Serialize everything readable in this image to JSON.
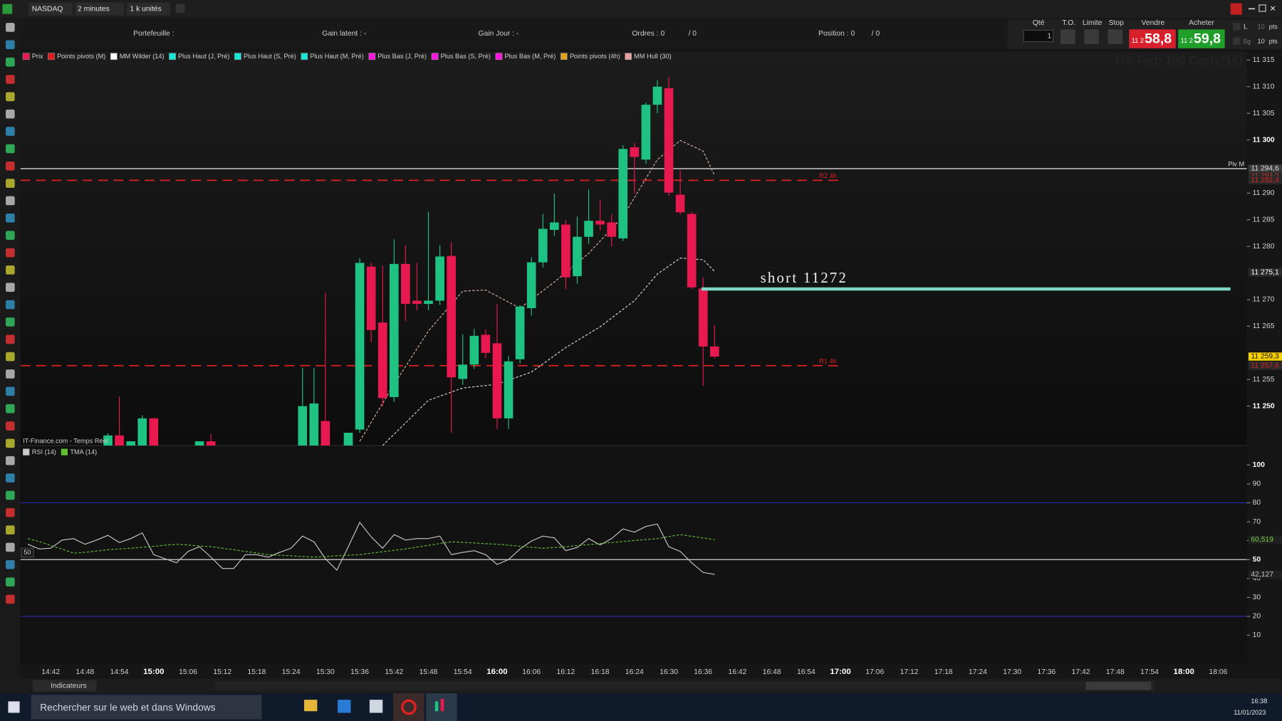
{
  "toolbar": {
    "symbol": "NASDAQ",
    "interval": "2 minutes",
    "units": "1 k unités",
    "portefeuille": "Portefeuille :",
    "gain_latent": "Gain latent : -",
    "gain_jour": "Gain Jour : -",
    "ordres": "Ordres : 0",
    "ordres_total": "/ 0",
    "position": "Position : 0",
    "position_total": "/ 0",
    "qty_label": "Qté",
    "qty": "1",
    "to": "T.O.",
    "limite": "Limite",
    "stop": "Stop",
    "vendre": "Vendre",
    "acheter": "Acheter",
    "sell_prefix": "11 2",
    "sell_price": "58,8",
    "buy_prefix": "11 2",
    "buy_price": "59,8",
    "l": "L",
    "ten_a": "10",
    "pts_a": "pts",
    "sg": "Sg",
    "ten_b": "10",
    "pts_b": "pts"
  },
  "legend": [
    {
      "name": "Prix",
      "color": "#e8194f"
    },
    {
      "name": "Points pivots (M)",
      "color": "#e02020"
    },
    {
      "name": "MM Wilder (14)",
      "color": "#ffffff"
    },
    {
      "name": "Plus Haut (J, Pré)",
      "color": "#19e6d6"
    },
    {
      "name": "Plus Haut (S, Pré)",
      "color": "#19e6d6"
    },
    {
      "name": "Plus Haut (M, Pré)",
      "color": "#19e6d6"
    },
    {
      "name": "Plus Bas (J, Pré)",
      "color": "#ff19e0"
    },
    {
      "name": "Plus Bas (S, Pré)",
      "color": "#ff19e0"
    },
    {
      "name": "Plus Bas (M, Pré)",
      "color": "#ff19e0"
    },
    {
      "name": "Points pivots (4h)",
      "color": "#e0a020"
    },
    {
      "name": "MM Hull (30)",
      "color": "#e6a0a0"
    }
  ],
  "watermark": "US Tech 100 Cash (1€)",
  "source": "IT-Finance.com - Temps Réel",
  "chart_data": [
    {
      "type": "candlestick",
      "x": [
        "14:38",
        "14:40",
        "14:42",
        "14:44",
        "14:46",
        "14:48",
        "14:50",
        "14:52",
        "14:54",
        "14:56",
        "14:58",
        "15:00",
        "15:02",
        "15:04",
        "15:06",
        "15:08",
        "15:10",
        "15:12",
        "15:14",
        "15:16",
        "15:18",
        "15:20",
        "15:22",
        "15:24",
        "15:26",
        "15:28",
        "15:30",
        "15:32",
        "15:34",
        "15:36",
        "15:38",
        "15:40",
        "15:42",
        "15:44",
        "15:46",
        "15:48",
        "15:50",
        "15:52",
        "15:54",
        "15:56",
        "15:58",
        "16:00",
        "16:02",
        "16:04",
        "16:06",
        "16:08",
        "16:10",
        "16:12",
        "16:14",
        "16:16",
        "16:18",
        "16:20",
        "16:22",
        "16:24",
        "16:26",
        "16:28",
        "16:30",
        "16:32",
        "16:34",
        "16:36",
        "16:38"
      ],
      "open": [
        null,
        null,
        null,
        null,
        null,
        null,
        null,
        11242.6,
        11244.5,
        11242.6,
        11242.6,
        11247.7,
        null,
        null,
        null,
        11242.6,
        11243.4,
        null,
        null,
        null,
        null,
        null,
        null,
        null,
        11242.6,
        11242.6,
        11247.2,
        null,
        11242.6,
        11245.6,
        11276.2,
        11265.7,
        11251.7,
        11276.7,
        11269.8,
        11269.2,
        11269.8,
        11278.2,
        11255.1,
        11257.8,
        11263.4,
        11261.8,
        11247.7,
        11258.8,
        11268.4,
        11277.0,
        11283.1,
        11284.1,
        11274.4,
        11281.8,
        11284.8,
        11284.5,
        11281.5,
        11298.6,
        11296.3,
        11306.6,
        11309.7,
        11289.7,
        11286.1,
        11272.1,
        11261.2
      ],
      "high": [
        null,
        null,
        null,
        null,
        null,
        null,
        null,
        11244.9,
        11251.8,
        11243.4,
        11248.3,
        11247.7,
        null,
        null,
        null,
        11243.4,
        11244.8,
        null,
        null,
        null,
        null,
        null,
        null,
        null,
        11257.2,
        11257.2,
        11271.3,
        null,
        11245.0,
        11277.8,
        11276.9,
        11276.4,
        11281.3,
        11280.2,
        11276.9,
        11286.5,
        11280.2,
        11280.8,
        11263.5,
        11264.5,
        11264.4,
        11269.2,
        11259.4,
        11269.0,
        11278.0,
        11286.1,
        11289.9,
        11285.0,
        11285.6,
        11290.7,
        11288.8,
        11286.0,
        11299.0,
        11299.4,
        11307.0,
        11311.2,
        11311.8,
        11294.3,
        11286.5,
        11274.1,
        11265.2
      ],
      "low": [
        null,
        null,
        null,
        null,
        null,
        null,
        null,
        11242.6,
        11242.6,
        11242.6,
        11242.6,
        11242.6,
        null,
        null,
        null,
        11242.6,
        11242.6,
        null,
        null,
        null,
        null,
        null,
        null,
        null,
        11242.6,
        11242.6,
        11242.6,
        null,
        11242.6,
        11245.0,
        11262.0,
        11250.0,
        11250.8,
        11266.0,
        11268.0,
        11268.0,
        11269.0,
        11245.0,
        11254.0,
        11257.0,
        11259.0,
        11245.7,
        11245.7,
        11258.0,
        11267.0,
        11276.0,
        11282.0,
        11272.0,
        11273.0,
        11280.5,
        11283.0,
        11280.0,
        11281.0,
        11290.0,
        11295.5,
        11305.0,
        11289.5,
        11286.0,
        11272.0,
        11253.8,
        11259.0
      ],
      "close": [
        null,
        null,
        null,
        null,
        null,
        null,
        null,
        11244.5,
        11242.6,
        11243.4,
        11247.7,
        11242.6,
        null,
        null,
        null,
        11243.4,
        11242.6,
        null,
        null,
        null,
        null,
        null,
        null,
        null,
        11250.0,
        11250.5,
        11242.6,
        null,
        11245.0,
        11276.9,
        11264.3,
        11251.5,
        11276.7,
        11269.2,
        11269.2,
        11269.8,
        11278.1,
        11255.4,
        11257.8,
        11263.2,
        11260.0,
        11247.7,
        11258.4,
        11268.7,
        11277.0,
        11283.3,
        11284.5,
        11274.2,
        11281.8,
        11284.8,
        11284.1,
        11281.8,
        11298.3,
        11296.8,
        11306.6,
        11310.0,
        11290.1,
        11286.4,
        11272.3,
        11261.2,
        11259.3
      ],
      "up_color": "#1fc283",
      "down_color": "#e8194f",
      "series": [
        {
          "color": "#d9b3a8",
          "dashed": true,
          "x": [
            "15:36",
            "15:42",
            "15:48",
            "15:54",
            "15:58",
            "16:04",
            "16:10",
            "16:16",
            "16:22",
            "16:28",
            "16:32",
            "16:36",
            "16:38"
          ],
          "values": [
            11243.4,
            11254.1,
            11264.1,
            11271.6,
            11271.8,
            11268.4,
            11273.3,
            11278.7,
            11285.6,
            11296.3,
            11299.9,
            11297.9,
            11293.3
          ]
        },
        {
          "color": "#d8d8d8",
          "dashed": true,
          "x": [
            "15:40",
            "15:48",
            "15:54",
            "16:00",
            "16:06",
            "16:12",
            "16:18",
            "16:24",
            "16:28",
            "16:32",
            "16:36",
            "16:38"
          ],
          "values": [
            11242.6,
            11251.1,
            11253.4,
            11254.1,
            11256.4,
            11261.0,
            11264.9,
            11269.8,
            11274.8,
            11277.8,
            11277.5,
            11275.3
          ]
        }
      ],
      "levels": [
        {
          "value": 11294.6,
          "label": "Piv M",
          "color": "#d8d8d8",
          "dashed": false
        },
        {
          "value": 11292.4,
          "label": "R2 4h",
          "color": "#e02020",
          "dashed": true
        },
        {
          "value": 11257.6,
          "label": "R1 4h",
          "color": "#e02020",
          "dashed": true
        }
      ],
      "annotation": {
        "value": 11272,
        "label": "short 11272",
        "color": "#7fd6c6"
      },
      "ylim": [
        11242.6,
        11316.6
      ],
      "yticks": [
        {
          "value": 11250,
          "label": "11 250",
          "bold": true
        },
        {
          "value": 11255,
          "label": "11 255"
        },
        {
          "value": 11265,
          "label": "11 265"
        },
        {
          "value": 11270,
          "label": "11 270"
        },
        {
          "value": 11280,
          "label": "11 280"
        },
        {
          "value": 11285,
          "label": "11 285"
        },
        {
          "value": 11290,
          "label": "11 290"
        },
        {
          "value": 11300,
          "label": "11 300",
          "bold": true
        },
        {
          "value": 11305,
          "label": "11 305"
        },
        {
          "value": 11310,
          "label": "11 310"
        },
        {
          "value": 11315,
          "label": "11 315"
        }
      ],
      "price_labels": [
        {
          "value": 11294.6,
          "label": "11 294,6",
          "bg": "#3a3a3a",
          "color": "#dddddd"
        },
        {
          "value": 11293.2,
          "label": "11 293,2",
          "bg": "#2a2a2a",
          "color": "#bb3030"
        },
        {
          "value": 11292.4,
          "label": "11 292,4",
          "bg": "#2a2a2a",
          "color": "#e02020"
        },
        {
          "value": 11275.1,
          "label": "11 275,1",
          "bg": "#2a2a2a",
          "color": "#ffffff"
        },
        {
          "value": 11259.3,
          "label": "11 259,3",
          "bg": "#f5d000",
          "color": "#111111"
        },
        {
          "value": 11257.6,
          "label": "11 257,6",
          "bg": "#2a2a2a",
          "color": "#e02020"
        }
      ],
      "xticks": [
        "14:42",
        "14:48",
        "14:54",
        "15:00",
        "15:06",
        "15:12",
        "15:18",
        "15:24",
        "15:30",
        "15:36",
        "15:42",
        "15:48",
        "15:54",
        "16:00",
        "16:06",
        "16:12",
        "16:18",
        "16:24",
        "16:30",
        "16:36",
        "16:42",
        "16:48",
        "16:54",
        "17:00",
        "17:06",
        "17:12",
        "17:18",
        "17:24",
        "17:30",
        "17:36",
        "17:42",
        "17:48",
        "17:54",
        "18:00",
        "18:06"
      ]
    },
    {
      "type": "line",
      "series": [
        {
          "name": "RSI (14)",
          "color": "#c8c8c8",
          "dashed": false,
          "values": [
            58.1,
            55.6,
            56.0,
            60.3,
            61.1,
            58.1,
            60.3,
            62.8,
            59.0,
            61.1,
            64.1,
            52.6,
            50.4,
            48.3,
            54.3,
            56.8,
            51.3,
            45.3,
            45.3,
            52.6,
            52.6,
            51.3,
            53.8,
            56.0,
            62.4,
            59.4,
            50.4,
            44.4,
            56.8,
            69.7,
            62.0,
            56.0,
            63.2,
            60.3,
            61.1,
            61.1,
            62.4,
            52.6,
            53.8,
            54.7,
            52.6,
            47.4,
            50.0,
            55.6,
            59.8,
            62.4,
            61.5,
            54.7,
            56.4,
            61.1,
            57.7,
            61.1,
            66.2,
            64.5,
            67.5,
            68.8,
            56.8,
            54.3,
            48.3,
            43.2,
            42.127
          ],
          "value_labels": [
            null,
            null,
            null,
            null,
            null,
            null,
            null,
            null,
            null,
            null,
            null,
            null,
            null,
            null,
            null,
            null,
            null,
            null,
            null,
            null,
            null,
            null,
            null,
            null,
            null,
            null,
            null,
            null,
            null,
            null,
            null,
            null,
            null,
            null,
            null,
            null,
            null,
            null,
            null,
            null,
            null,
            null,
            null,
            null,
            null,
            null,
            null,
            null,
            null,
            null,
            null,
            null,
            null,
            null,
            null,
            null,
            null,
            null,
            null,
            null,
            "42,127"
          ],
          "label_color": "#c8c8c8"
        },
        {
          "name": "TMA (14)",
          "color": "#5fbf2f",
          "dashed": true,
          "values": [
            61.1,
            59.5,
            57.5,
            55.5,
            53.4,
            53.8,
            54.5,
            55.2,
            55.6,
            56.0,
            56.5,
            57.0,
            57.6,
            58.1,
            57.7,
            57.2,
            56.8,
            56.0,
            55.2,
            54.3,
            53.5,
            52.6,
            52.3,
            52.0,
            51.6,
            51.3,
            51.6,
            52.0,
            52.3,
            52.6,
            53.4,
            54.1,
            54.9,
            55.6,
            56.6,
            57.5,
            58.5,
            59.4,
            59.1,
            58.8,
            58.4,
            58.1,
            57.6,
            57.0,
            56.5,
            56.0,
            56.4,
            56.8,
            57.4,
            57.9,
            58.5,
            59.0,
            59.5,
            60.1,
            60.6,
            61.1,
            62.2,
            63.2,
            62.3,
            61.4,
            60.519
          ],
          "value_labels": [
            null,
            null,
            null,
            null,
            null,
            null,
            null,
            null,
            null,
            null,
            null,
            null,
            null,
            null,
            null,
            null,
            null,
            null,
            null,
            null,
            null,
            null,
            null,
            null,
            null,
            null,
            null,
            null,
            null,
            null,
            null,
            null,
            null,
            null,
            null,
            null,
            null,
            null,
            null,
            null,
            null,
            null,
            null,
            null,
            null,
            null,
            null,
            null,
            null,
            null,
            null,
            null,
            null,
            null,
            null,
            null,
            null,
            null,
            null,
            null,
            "60,519"
          ],
          "label_color": "#6fd03f"
        }
      ],
      "levels": [
        {
          "value": 80,
          "color": "#2a2ab0"
        },
        {
          "value": 50,
          "label": "50",
          "color": "#e8e8e8"
        },
        {
          "value": 20,
          "color": "#2a2ab0"
        }
      ],
      "ylim": [
        -5.1,
        110.3
      ],
      "yticks": [
        10,
        20,
        30,
        40,
        50,
        60,
        70,
        80,
        90,
        100
      ]
    }
  ],
  "bottom_toolbar": {
    "indicateurs": "Indicateurs"
  },
  "taskbar": {
    "search": "Rechercher sur le web et dans Windows",
    "time": "16:38",
    "date": "11/01/2023"
  }
}
